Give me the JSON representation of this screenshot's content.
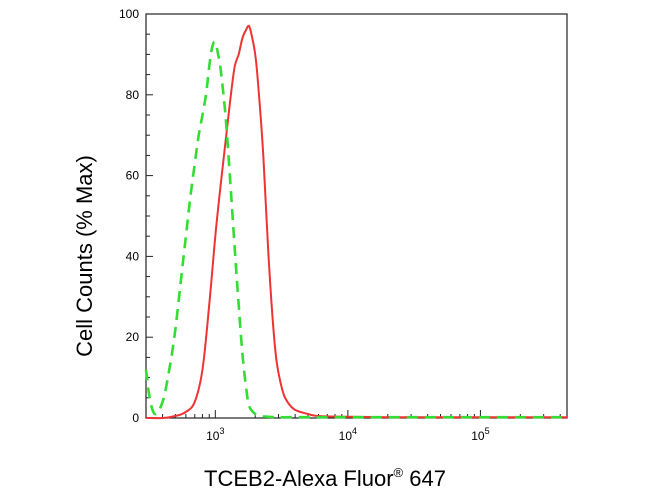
{
  "chart_data": {
    "type": "line",
    "xlabel": "TCEB2-Alexa Fluor",
    "xlabel_sup": "®",
    "xlabel_suffix": " 647",
    "ylabel": "Cell Counts (% Max)",
    "x_scale": "log",
    "xlim": [
      300,
      450000
    ],
    "ylim": [
      0,
      100
    ],
    "yticks": [
      "0",
      "20",
      "40",
      "60",
      "80",
      "100"
    ],
    "xticks": [
      {
        "value": 1000,
        "base": "10",
        "exp": "3"
      },
      {
        "value": 10000,
        "base": "10",
        "exp": "4"
      },
      {
        "value": 100000,
        "base": "10",
        "exp": "5"
      }
    ],
    "grid": false,
    "series": [
      {
        "color": "#ee3333",
        "style": "solid",
        "x": [
          300,
          400,
          500,
          600,
          700,
          800,
          900,
          1000,
          1100,
          1200,
          1300,
          1400,
          1500,
          1600,
          1700,
          1800,
          1900,
          2000,
          2100,
          2300,
          2500,
          2700,
          2900,
          3200,
          3500,
          4000,
          5000,
          6000,
          10000,
          20000,
          50000,
          100000,
          200000,
          450000
        ],
        "y": [
          0,
          0,
          0.5,
          1.5,
          4,
          12,
          28,
          45,
          58,
          69,
          79,
          87,
          90,
          94,
          96,
          97,
          94,
          90,
          83,
          65,
          42,
          25,
          14,
          7,
          4,
          2,
          1,
          0.5,
          0.3,
          0.2,
          0.2,
          0.2,
          0.2,
          0.2
        ]
      },
      {
        "color": "#33dd33",
        "style": "dashed",
        "x": [
          300,
          320,
          350,
          400,
          450,
          500,
          550,
          600,
          650,
          700,
          750,
          800,
          850,
          900,
          950,
          1000,
          1050,
          1100,
          1200,
          1300,
          1400,
          1500,
          1600,
          1700,
          1800,
          2000,
          2200,
          2500,
          3000,
          4000,
          6000,
          10000,
          100000,
          450000
        ],
        "y": [
          12,
          5,
          1,
          4,
          12,
          22,
          34,
          45,
          55,
          63,
          70,
          75,
          80,
          87,
          92,
          93,
          90,
          86,
          74,
          58,
          42,
          28,
          16,
          8,
          3,
          1,
          0.5,
          0.3,
          0.2,
          0.2,
          0.2,
          0.2,
          0.2,
          0.2
        ]
      }
    ]
  }
}
